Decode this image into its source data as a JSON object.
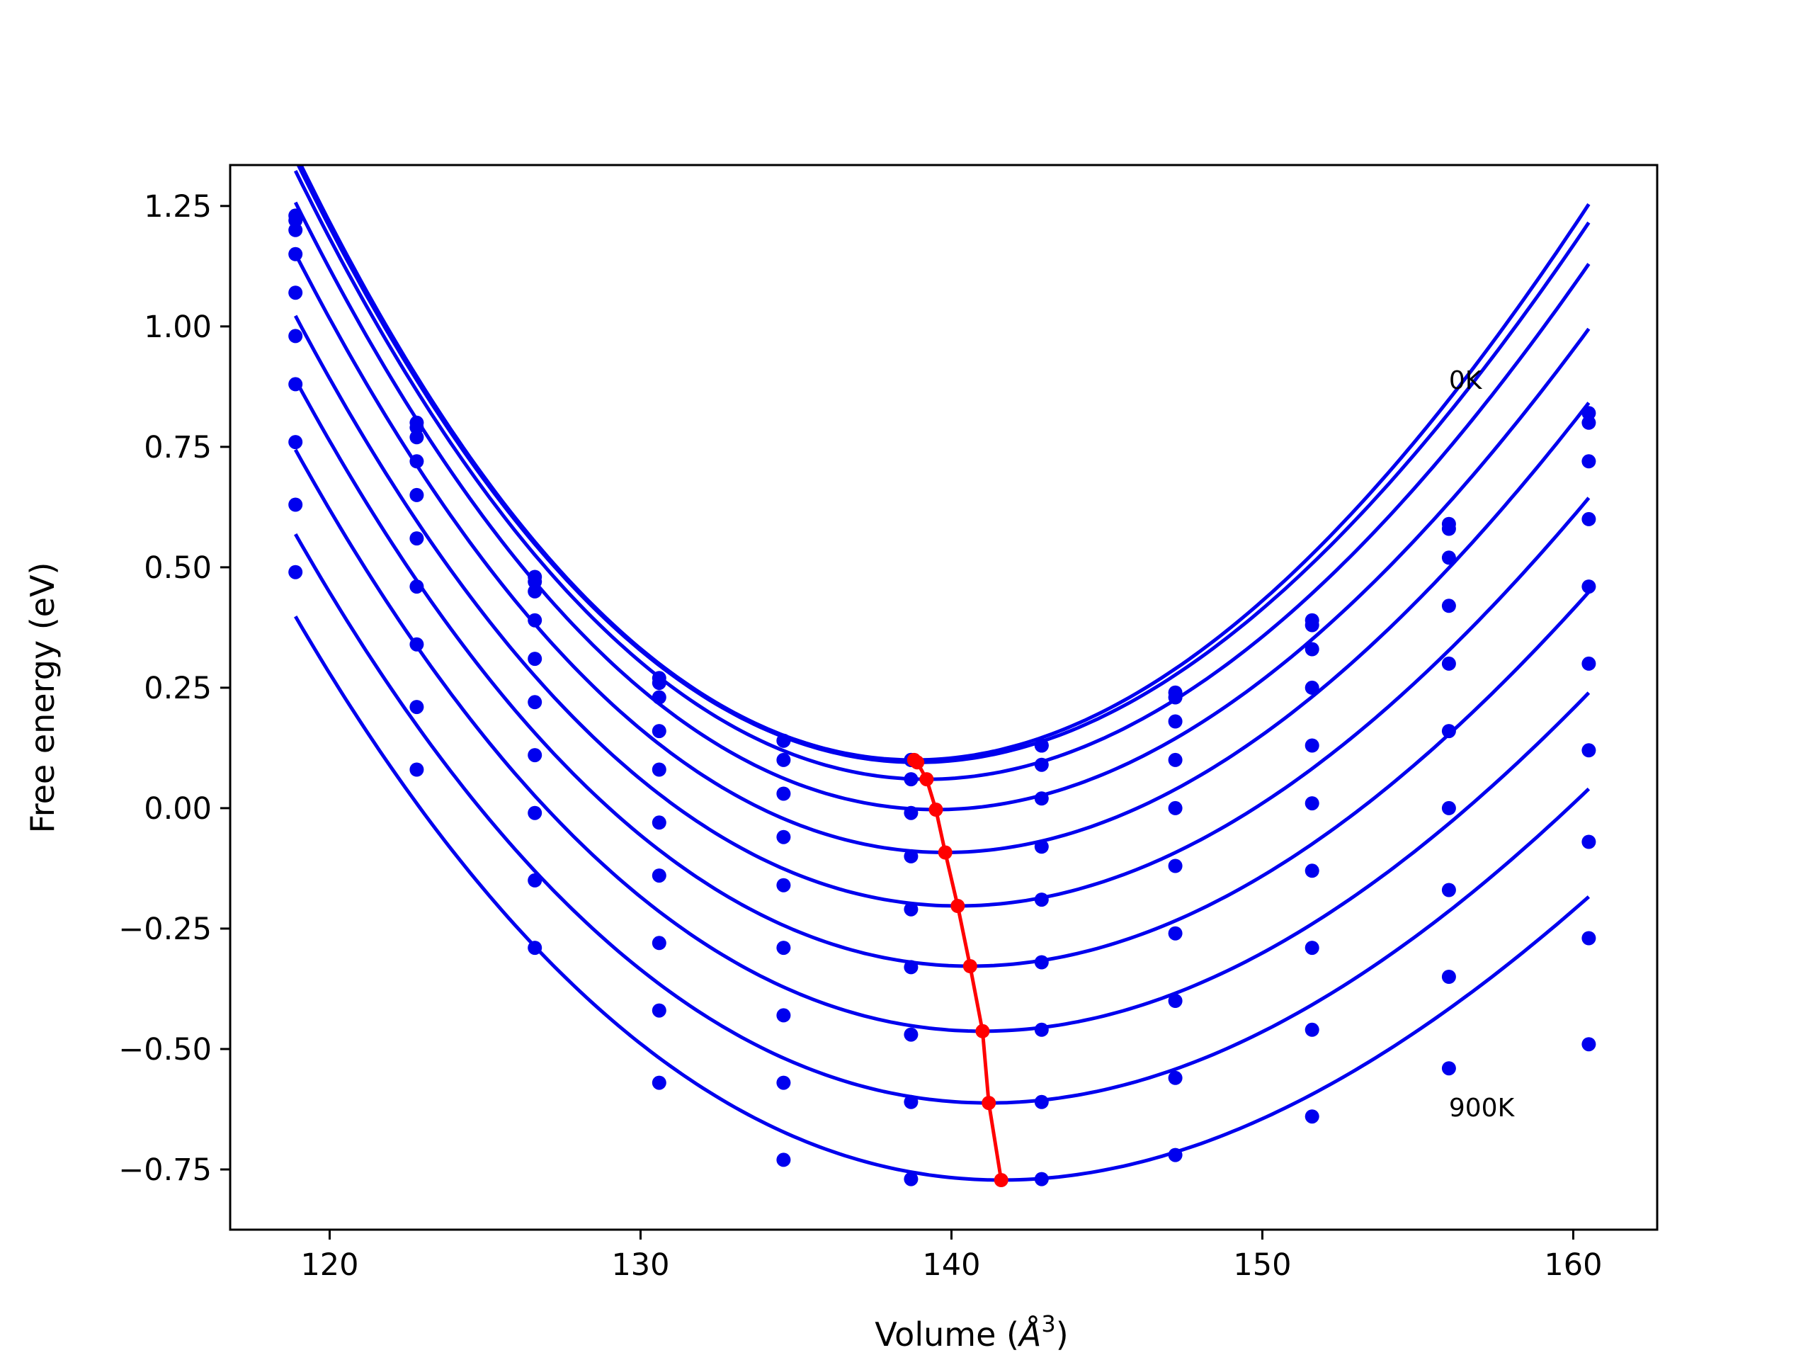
{
  "chart_data": {
    "type": "scatter",
    "xlabel": "Volume (",
    "xlabel_unit": "Å",
    "xlabel_exp": "3",
    "xlabel_close": ")",
    "ylabel": "Free energy (eV)",
    "xlim": [
      116.8,
      162.7
    ],
    "ylim": [
      -0.875,
      1.335
    ],
    "x_ticks": [
      120,
      130,
      140,
      150,
      160
    ],
    "x_tick_labels": [
      "120",
      "130",
      "140",
      "150",
      "160"
    ],
    "y_ticks": [
      1.25,
      1.0,
      0.75,
      0.5,
      0.25,
      0.0,
      -0.25,
      -0.5,
      -0.75
    ],
    "y_tick_labels": [
      "1.25",
      "1.00",
      "0.75",
      "0.50",
      "0.25",
      "0.00",
      "−0.25",
      "−0.50",
      "−0.75"
    ],
    "grid": false,
    "annotations": [
      {
        "text": "0K",
        "x": 156.0,
        "y": 0.87
      },
      {
        "text": "900K",
        "x": 156.0,
        "y": -0.64
      }
    ],
    "colors": {
      "series": "#0000ee",
      "minima": "#ff0000"
    },
    "x": [
      118.9,
      122.8,
      126.6,
      130.6,
      134.6,
      138.7,
      142.9,
      147.2,
      151.6,
      156.0,
      160.5
    ],
    "series": [
      {
        "values": [
          1.23,
          0.8,
          0.48,
          0.27,
          0.14,
          0.1,
          0.13,
          0.24,
          0.39,
          0.59,
          0.82
        ],
        "fit": {
          "xmin": 118.9,
          "xmax": 160.5,
          "v0": 138.8,
          "f0": 0.1,
          "a": 0.00283,
          "b": -1.75e-05
        }
      },
      {
        "values": [
          1.22,
          0.79,
          0.47,
          0.26,
          0.14,
          0.1,
          0.13,
          0.23,
          0.38,
          0.58,
          0.8
        ],
        "fit": {
          "xmin": 118.9,
          "xmax": 160.5,
          "v0": 138.9,
          "f0": 0.095,
          "a": 0.00278,
          "b": -1.75e-05
        }
      },
      {
        "values": [
          1.2,
          0.77,
          0.45,
          0.23,
          0.1,
          0.06,
          0.09,
          0.18,
          0.33,
          0.52,
          0.72
        ],
        "fit": {
          "xmin": 118.9,
          "xmax": 160.5,
          "v0": 139.2,
          "f0": 0.06,
          "a": 0.00272,
          "b": -1.7e-05
        }
      },
      {
        "values": [
          1.15,
          0.72,
          0.39,
          0.16,
          0.03,
          -0.01,
          0.02,
          0.1,
          0.25,
          0.42,
          0.6
        ],
        "fit": {
          "xmin": 118.9,
          "xmax": 160.5,
          "v0": 139.5,
          "f0": -0.003,
          "a": 0.00262,
          "b": -1.7e-05
        }
      },
      {
        "values": [
          1.07,
          0.65,
          0.31,
          0.08,
          -0.06,
          -0.1,
          -0.08,
          0.0,
          0.13,
          0.3,
          0.46
        ],
        "fit": {
          "xmin": 118.9,
          "xmax": 160.5,
          "v0": 139.8,
          "f0": -0.092,
          "a": 0.00251,
          "b": -1.6e-05
        }
      },
      {
        "values": [
          0.98,
          0.56,
          0.22,
          -0.03,
          -0.16,
          -0.21,
          -0.19,
          -0.12,
          0.01,
          0.16,
          0.3
        ],
        "fit": {
          "xmin": 118.9,
          "xmax": 160.5,
          "v0": 140.2,
          "f0": -0.203,
          "a": 0.00237,
          "b": -1.55e-05
        }
      },
      {
        "values": [
          0.88,
          0.46,
          0.11,
          -0.14,
          -0.29,
          -0.33,
          -0.32,
          -0.26,
          -0.13,
          0.0,
          0.12
        ],
        "fit": {
          "xmin": 118.9,
          "xmax": 160.5,
          "v0": 140.6,
          "f0": -0.328,
          "a": 0.00226,
          "b": -1.5e-05
        }
      },
      {
        "values": [
          0.76,
          0.34,
          -0.01,
          -0.28,
          -0.43,
          -0.47,
          -0.46,
          -0.4,
          -0.29,
          -0.17,
          -0.07
        ],
        "fit": {
          "xmin": 118.9,
          "xmax": 160.5,
          "v0": 141.0,
          "f0": -0.463,
          "a": 0.00214,
          "b": -1.5e-05
        }
      },
      {
        "values": [
          0.63,
          0.21,
          -0.15,
          -0.42,
          -0.57,
          -0.61,
          -0.61,
          -0.56,
          -0.46,
          -0.35,
          -0.27
        ],
        "fit": {
          "xmin": 118.9,
          "xmax": 160.5,
          "v0": 141.2,
          "f0": -0.612,
          "a": 0.00204,
          "b": -1.5e-05
        }
      },
      {
        "values": [
          0.49,
          0.08,
          -0.29,
          -0.57,
          -0.73,
          -0.77,
          -0.77,
          -0.72,
          -0.64,
          -0.54,
          -0.49
        ],
        "fit": {
          "xmin": 118.9,
          "xmax": 160.5,
          "v0": 141.6,
          "f0": -0.772,
          "a": 0.00193,
          "b": -1.5e-05
        }
      }
    ],
    "minima": {
      "x": [
        138.8,
        138.9,
        139.2,
        139.5,
        139.8,
        140.2,
        140.6,
        141.0,
        141.2,
        141.6
      ],
      "y": [
        0.1,
        0.095,
        0.06,
        -0.003,
        -0.092,
        -0.203,
        -0.328,
        -0.463,
        -0.612,
        -0.772
      ]
    }
  }
}
